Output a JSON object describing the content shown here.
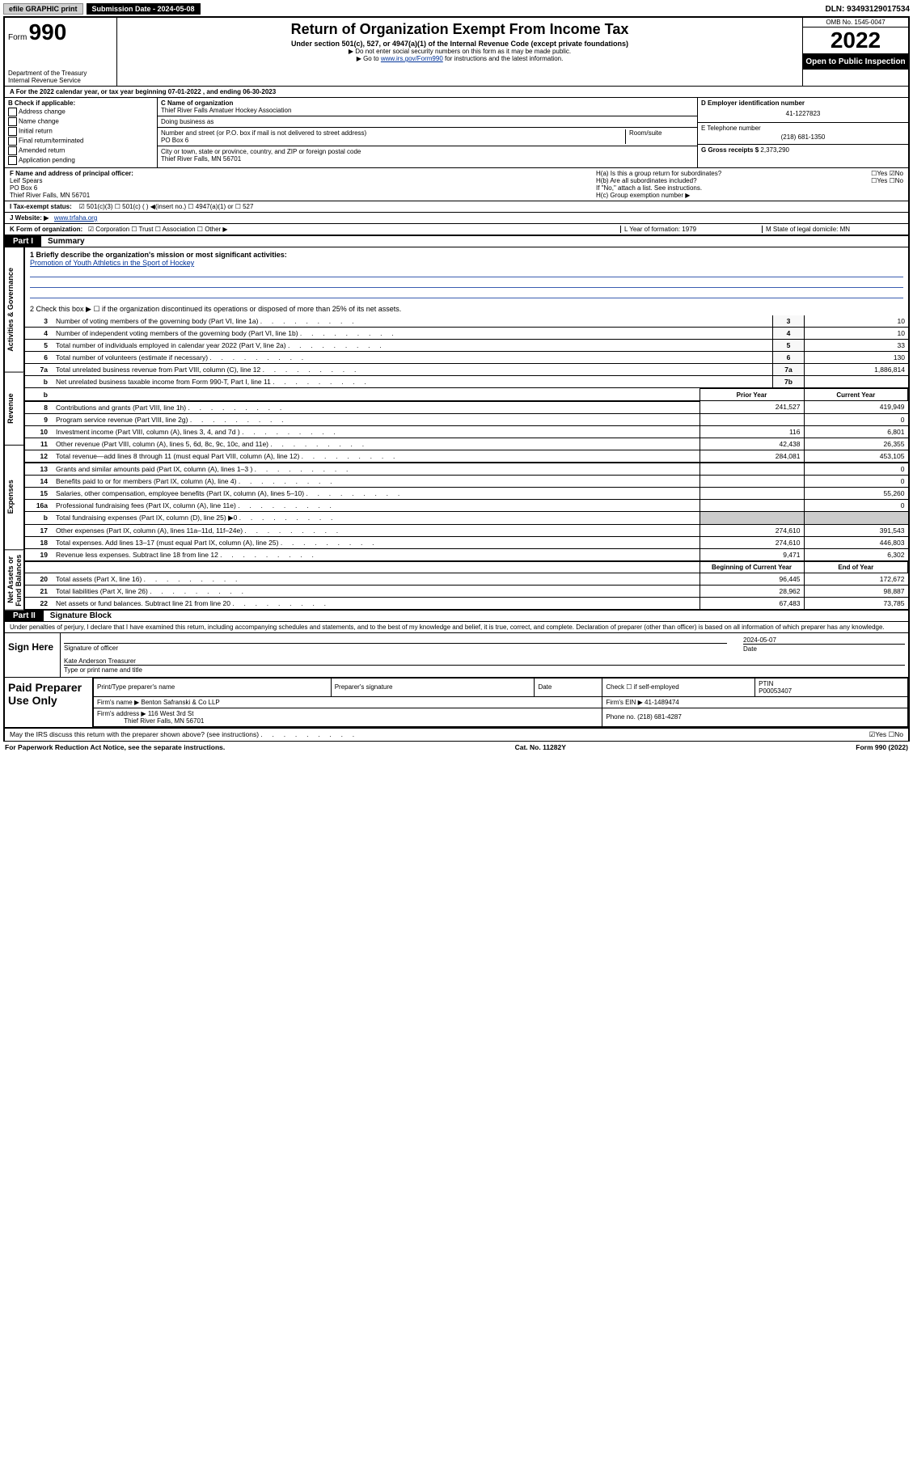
{
  "topbar": {
    "efile": "efile GRAPHIC print",
    "submission_label": "Submission Date - 2024-05-08",
    "dln": "DLN: 93493129017534"
  },
  "header": {
    "form_label": "Form",
    "form_number": "990",
    "dept": "Department of the Treasury",
    "irs": "Internal Revenue Service",
    "title": "Return of Organization Exempt From Income Tax",
    "sub": "Under section 501(c), 527, or 4947(a)(1) of the Internal Revenue Code (except private foundations)",
    "note1": "▶ Do not enter social security numbers on this form as it may be made public.",
    "note2_prefix": "▶ Go to ",
    "note2_link": "www.irs.gov/Form990",
    "note2_suffix": " for instructions and the latest information.",
    "omb": "OMB No. 1545-0047",
    "year": "2022",
    "open": "Open to Public Inspection"
  },
  "lineA": "For the 2022 calendar year, or tax year beginning 07-01-2022   , and ending 06-30-2023",
  "B": {
    "label": "B Check if applicable:",
    "opts": [
      "Address change",
      "Name change",
      "Initial return",
      "Final return/terminated",
      "Amended return",
      "Application pending"
    ]
  },
  "C": {
    "name_label": "C Name of organization",
    "name": "Thief River Falls Amatuer Hockey Association",
    "dba_label": "Doing business as",
    "addr_label": "Number and street (or P.O. box if mail is not delivered to street address)",
    "room_label": "Room/suite",
    "addr": "PO Box 6",
    "city_label": "City or town, state or province, country, and ZIP or foreign postal code",
    "city": "Thief River Falls, MN  56701"
  },
  "D": {
    "label": "D Employer identification number",
    "val": "41-1227823"
  },
  "E": {
    "label": "E Telephone number",
    "val": "(218) 681-1350"
  },
  "G": {
    "label": "G Gross receipts $",
    "val": "2,373,290"
  },
  "F": {
    "label": "F Name and address of principal officer:",
    "name": "Leif Spears",
    "addr1": "PO Box 6",
    "addr2": "Thief River Falls, MN  56701"
  },
  "H": {
    "a": "H(a)  Is this a group return for subordinates?",
    "a_ans": "☐Yes ☑No",
    "b": "H(b)  Are all subordinates included?",
    "b_ans": "☐Yes ☐No",
    "b_note": "If \"No,\" attach a list. See instructions.",
    "c": "H(c)  Group exemption number ▶"
  },
  "I": {
    "label": "I   Tax-exempt status:",
    "opts": "☑ 501(c)(3)   ☐ 501(c) (  ) ◀(insert no.)   ☐ 4947(a)(1) or   ☐ 527"
  },
  "J": {
    "label": "J   Website: ▶",
    "val": "www.trfaha.org"
  },
  "K": {
    "label": "K Form of organization:",
    "opts": "☑ Corporation  ☐ Trust  ☐ Association  ☐ Other ▶",
    "L": "L Year of formation: 1979",
    "M": "M State of legal domicile: MN"
  },
  "partI": {
    "tag": "Part I",
    "title": "Summary"
  },
  "summary": {
    "q1_label": "1  Briefly describe the organization's mission or most significant activities:",
    "q1_val": "Promotion of Youth Athletics in the Sport of Hockey",
    "q2": "2   Check this box ▶ ☐  if the organization discontinued its operations or disposed of more than 25% of its net assets.",
    "rows_gov": [
      {
        "n": "3",
        "t": "Number of voting members of the governing body (Part VI, line 1a)",
        "ln": "3",
        "v": "10"
      },
      {
        "n": "4",
        "t": "Number of independent voting members of the governing body (Part VI, line 1b)",
        "ln": "4",
        "v": "10"
      },
      {
        "n": "5",
        "t": "Total number of individuals employed in calendar year 2022 (Part V, line 2a)",
        "ln": "5",
        "v": "33"
      },
      {
        "n": "6",
        "t": "Total number of volunteers (estimate if necessary)",
        "ln": "6",
        "v": "130"
      },
      {
        "n": "7a",
        "t": "Total unrelated business revenue from Part VIII, column (C), line 12",
        "ln": "7a",
        "v": "1,886,814"
      },
      {
        "n": "b",
        "t": "Net unrelated business taxable income from Form 990-T, Part I, line 11",
        "ln": "7b",
        "v": ""
      }
    ],
    "hdr_prior": "Prior Year",
    "hdr_current": "Current Year",
    "rows_rev": [
      {
        "n": "8",
        "t": "Contributions and grants (Part VIII, line 1h)",
        "p": "241,527",
        "c": "419,949"
      },
      {
        "n": "9",
        "t": "Program service revenue (Part VIII, line 2g)",
        "p": "",
        "c": "0"
      },
      {
        "n": "10",
        "t": "Investment income (Part VIII, column (A), lines 3, 4, and 7d )",
        "p": "116",
        "c": "6,801"
      },
      {
        "n": "11",
        "t": "Other revenue (Part VIII, column (A), lines 5, 6d, 8c, 9c, 10c, and 11e)",
        "p": "42,438",
        "c": "26,355"
      },
      {
        "n": "12",
        "t": "Total revenue—add lines 8 through 11 (must equal Part VIII, column (A), line 12)",
        "p": "284,081",
        "c": "453,105"
      }
    ],
    "rows_exp": [
      {
        "n": "13",
        "t": "Grants and similar amounts paid (Part IX, column (A), lines 1–3 )",
        "p": "",
        "c": "0"
      },
      {
        "n": "14",
        "t": "Benefits paid to or for members (Part IX, column (A), line 4)",
        "p": "",
        "c": "0"
      },
      {
        "n": "15",
        "t": "Salaries, other compensation, employee benefits (Part IX, column (A), lines 5–10)",
        "p": "",
        "c": "55,260"
      },
      {
        "n": "16a",
        "t": "Professional fundraising fees (Part IX, column (A), line 11e)",
        "p": "",
        "c": "0"
      },
      {
        "n": "b",
        "t": "Total fundraising expenses (Part IX, column (D), line 25) ▶0",
        "p": "—",
        "c": "—"
      },
      {
        "n": "17",
        "t": "Other expenses (Part IX, column (A), lines 11a–11d, 11f–24e)",
        "p": "274,610",
        "c": "391,543"
      },
      {
        "n": "18",
        "t": "Total expenses. Add lines 13–17 (must equal Part IX, column (A), line 25)",
        "p": "274,610",
        "c": "446,803"
      },
      {
        "n": "19",
        "t": "Revenue less expenses. Subtract line 18 from line 12",
        "p": "9,471",
        "c": "6,302"
      }
    ],
    "hdr_begin": "Beginning of Current Year",
    "hdr_end": "End of Year",
    "rows_net": [
      {
        "n": "20",
        "t": "Total assets (Part X, line 16)",
        "p": "96,445",
        "c": "172,672"
      },
      {
        "n": "21",
        "t": "Total liabilities (Part X, line 26)",
        "p": "28,962",
        "c": "98,887"
      },
      {
        "n": "22",
        "t": "Net assets or fund balances. Subtract line 21 from line 20",
        "p": "67,483",
        "c": "73,785"
      }
    ]
  },
  "vlabels": {
    "gov": "Activities & Governance",
    "rev": "Revenue",
    "exp": "Expenses",
    "net": "Net Assets or Fund Balances"
  },
  "partII": {
    "tag": "Part II",
    "title": "Signature Block"
  },
  "declare": "Under penalties of perjury, I declare that I have examined this return, including accompanying schedules and statements, and to the best of my knowledge and belief, it is true, correct, and complete. Declaration of preparer (other than officer) is based on all information of which preparer has any knowledge.",
  "sign": {
    "label": "Sign Here",
    "sig_label": "Signature of officer",
    "date": "2024-05-07",
    "date_label": "Date",
    "name": "Kate Anderson  Treasurer",
    "name_label": "Type or print name and title"
  },
  "prep": {
    "label": "Paid Preparer Use Only",
    "h1": "Print/Type preparer's name",
    "h2": "Preparer's signature",
    "h3": "Date",
    "h4": "Check ☐ if self-employed",
    "h5_label": "PTIN",
    "h5": "P00053407",
    "firm_label": "Firm's name    ▶",
    "firm": "Benton Safranski & Co LLP",
    "ein_label": "Firm's EIN ▶",
    "ein": "41-1489474",
    "addr_label": "Firm's address ▶",
    "addr1": "116 West 3rd St",
    "addr2": "Thief River Falls, MN  56701",
    "phone_label": "Phone no.",
    "phone": "(218) 681-4287"
  },
  "footer": {
    "discuss": "May the IRS discuss this return with the preparer shown above? (see instructions)",
    "discuss_ans": "☑Yes  ☐No",
    "pra": "For Paperwork Reduction Act Notice, see the separate instructions.",
    "cat": "Cat. No. 11282Y",
    "form": "Form 990 (2022)"
  }
}
